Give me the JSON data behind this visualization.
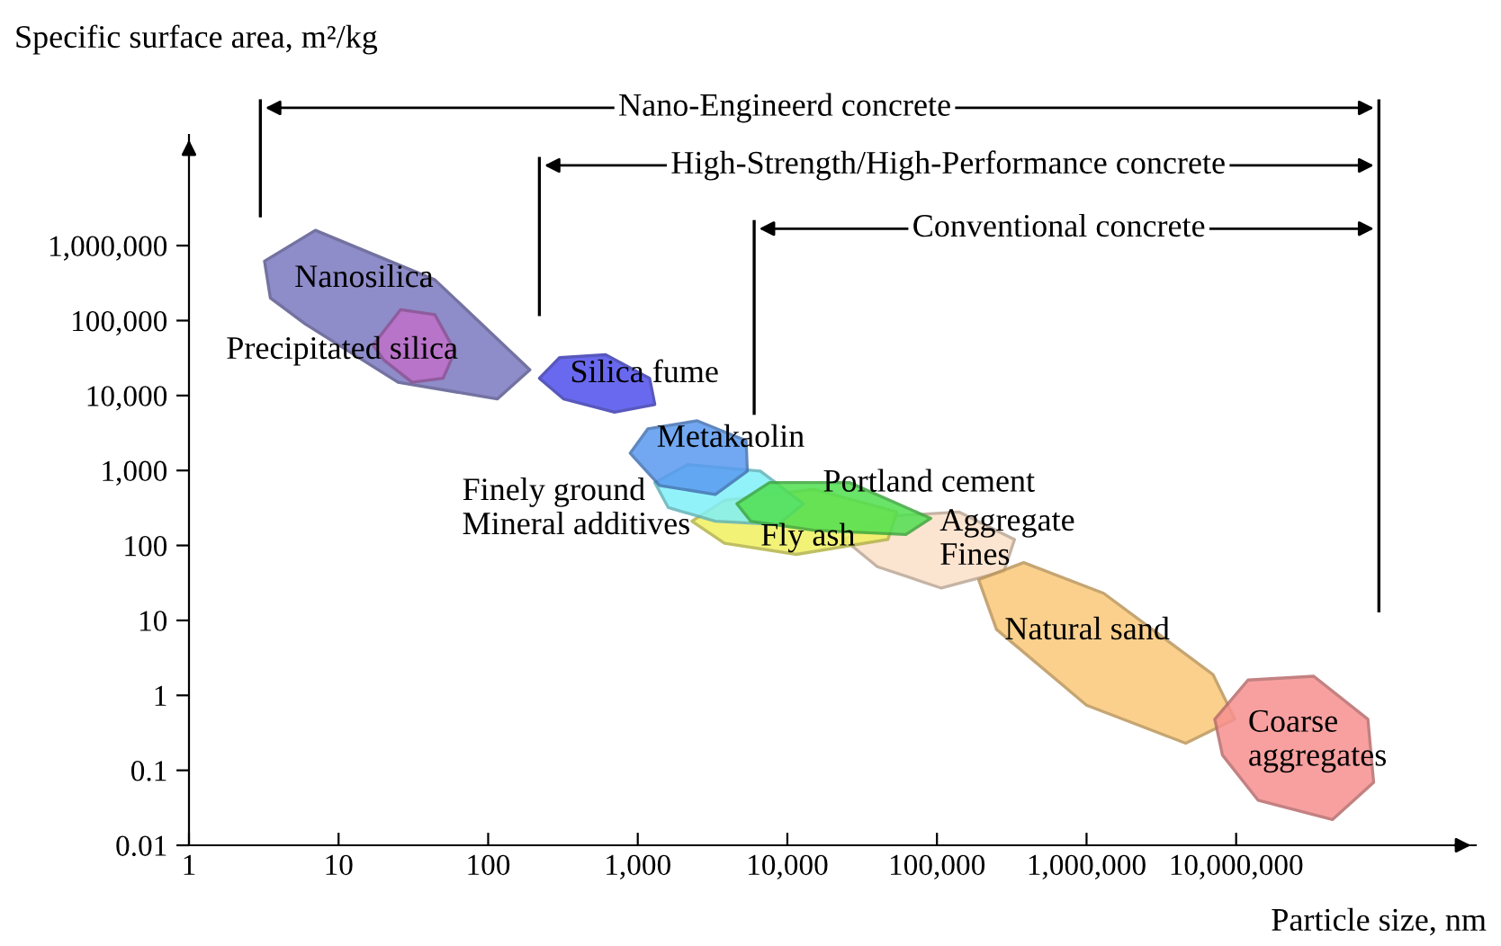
{
  "chart_data": {
    "type": "area",
    "xlabel": "Particle size, nm",
    "ylabel": "Specific surface area, m²/kg",
    "log": "xy",
    "xlim": [
      1,
      400000000
    ],
    "ylim": [
      0.01,
      30000000
    ],
    "xticks": [
      1,
      10,
      100,
      {
        "value": 1000,
        "label": "1,000"
      },
      {
        "value": 10000,
        "label": "10,000"
      },
      {
        "value": 100000,
        "label": "100,000"
      },
      {
        "value": 1000000,
        "label": "1,000,000"
      },
      {
        "value": 10000000,
        "label": "10,000,000"
      }
    ],
    "yticks": [
      0.01,
      0.1,
      1,
      10,
      100,
      {
        "value": 1000,
        "label": "1,000"
      },
      {
        "value": 10000,
        "label": "10,000"
      },
      {
        "value": 100000,
        "label": "100,000"
      },
      {
        "value": 1000000,
        "label": "1,000,000"
      }
    ],
    "series": [
      {
        "color": "#7b78c0",
        "x": [
          3.2,
          7,
          44,
          190,
          115,
          25,
          6,
          3.5
        ],
        "values": [
          620000,
          1600000,
          350000,
          22000,
          9000,
          15000,
          90000,
          200000
        ]
      },
      {
        "color": "#c070c8",
        "x": [
          17,
          26,
          44,
          60,
          50,
          31,
          20
        ],
        "values": [
          47000,
          140000,
          120000,
          39000,
          17000,
          15000,
          30000
        ]
      },
      {
        "color": "#5050ee",
        "x": [
          220,
          300,
          610,
          1200,
          1300,
          700,
          320
        ],
        "values": [
          17000,
          32000,
          35000,
          17000,
          7600,
          6000,
          9000
        ]
      },
      {
        "color": "#fbe0c8",
        "x": [
          24000,
          47000,
          140000,
          330000,
          280000,
          107000,
          40000
        ],
        "values": [
          120,
          245,
          280,
          120,
          45,
          27,
          52
        ]
      },
      {
        "color": "#f0f060",
        "x": [
          2300,
          3800,
          15000,
          54000,
          47000,
          11500,
          3800
        ],
        "values": [
          210,
          400,
          560,
          280,
          120,
          76,
          107
        ]
      },
      {
        "color": "#80f0f8",
        "x": [
          1300,
          2150,
          6600,
          12800,
          8700,
          3300,
          1600
        ],
        "values": [
          690,
          1200,
          980,
          360,
          190,
          210,
          320
        ]
      },
      {
        "color": "#50e050",
        "x": [
          4600,
          7600,
          26000,
          91000,
          62000,
          15000,
          5700
        ],
        "values": [
          360,
          690,
          690,
          230,
          140,
          160,
          210
        ]
      },
      {
        "color": "#5a9af0",
        "x": [
          890,
          1170,
          2500,
          5300,
          5400,
          3300,
          1400
        ],
        "values": [
          1700,
          3600,
          4600,
          2500,
          980,
          480,
          630
        ]
      },
      {
        "color": "#fbc878",
        "x": [
          190000,
          380000,
          1300000,
          7000000,
          9800000,
          4600000,
          1000000,
          250000
        ],
        "values": [
          35,
          59,
          23,
          1.9,
          0.48,
          0.23,
          0.74,
          7.6
        ]
      },
      {
        "color": "#f79090",
        "x": [
          7200000,
          12000000,
          33000000,
          76000000,
          83000000,
          44000000,
          14000000,
          8100000
        ],
        "values": [
          0.48,
          1.6,
          1.8,
          0.48,
          0.069,
          0.022,
          0.04,
          0.16
        ]
      }
    ],
    "ref_lines": [
      {
        "axis": "x",
        "value": 3
      },
      {
        "axis": "x",
        "value": 220
      },
      {
        "axis": "x",
        "value": 6000
      },
      {
        "axis": "x",
        "value": 90000000
      }
    ],
    "annotations": [
      "Nano-Engineerd concrete",
      "High-Strength/High-Performance concrete",
      "Conventional concrete",
      "Nanosilica",
      "Precipitated silica",
      "Silica fume",
      "Metakaolin",
      "Finely ground\nMineral additives",
      "Portland cement",
      "Fly ash",
      "Aggregate\nFines",
      "Natural sand",
      "Coarse\naggregates"
    ]
  }
}
